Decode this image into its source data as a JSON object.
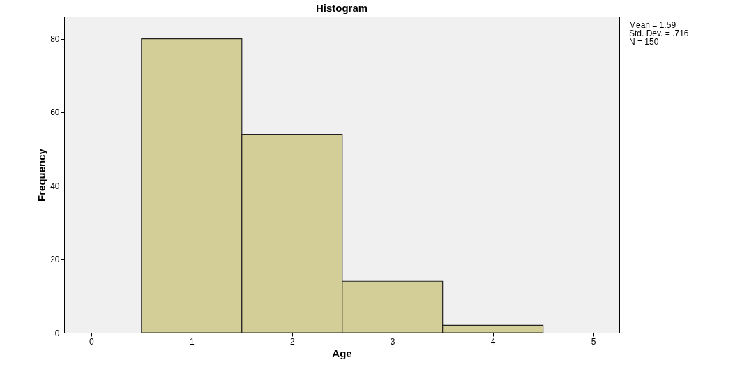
{
  "chart_data": {
    "type": "histogram",
    "title": "Histogram",
    "xlabel": "Age",
    "ylabel": "Frequency",
    "bins": [
      0.5,
      1.5,
      2.5,
      3.5,
      4.5
    ],
    "values": [
      80,
      54,
      14,
      2
    ],
    "color": "#d3ce97",
    "xlim": [
      -0.27,
      5.26
    ],
    "xticks": [
      0,
      1,
      2,
      3,
      4,
      5
    ],
    "ylim": [
      0,
      86
    ],
    "yticks": [
      0,
      20,
      40,
      60,
      80
    ],
    "grid": false,
    "annotations": [
      "Mean = 1.59",
      "Std. Dev. = .716",
      "N = 150"
    ]
  }
}
